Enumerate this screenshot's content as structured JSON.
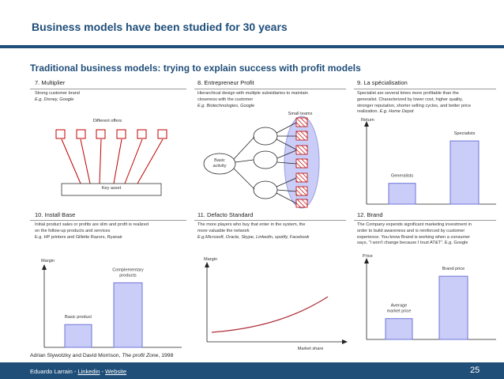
{
  "slide": {
    "title": "Business models have been studied for 30 years",
    "subtitle": "Traditional business models: trying to explain success with profit models",
    "source_prefix": "Adrian Slywotzky and David Morrison, ",
    "source_book": "The profit Zone",
    "source_suffix": ", 1998",
    "page_number": "25"
  },
  "footer": {
    "author": "Eduardo Larrain",
    "sep1": " - ",
    "link1": "Linkedin",
    "sep2": " - ",
    "link2": "Website"
  },
  "panels": {
    "multiplier": {
      "title": "7. Multiplier",
      "desc1": "Strong customer brand",
      "desc2": "E.g. Disney, Google",
      "offers_label": "Different offers",
      "key_asset_label": "Key asset"
    },
    "entrepreneur": {
      "title": "8. Entrepreneur Profit",
      "desc1": "Hierarchical design with multiple subsidiaries to maintain",
      "desc2": "closeness with the customer",
      "desc3": "E.g. Biotechnologies, Google",
      "small_teams_label": "Small teams",
      "basic_activity_1": "Basic",
      "basic_activity_2": "activity"
    },
    "specialisation": {
      "title": "9. La spécialisation",
      "desc1": "Specialist are several times more profitable than the",
      "desc2": "generalist. Characterized by lower cost, higher quality,",
      "desc3": "stronger reputation, shorter selling cycles, and better price",
      "desc4": "realization. ",
      "desc4_example": "E.g. Home Depot",
      "y_axis_label": "Return",
      "bars": [
        {
          "label": "Generalists",
          "value": 0.28
        },
        {
          "label": "Specialists",
          "value": 0.85
        }
      ]
    },
    "install_base": {
      "title": "10. Install Base",
      "desc1": "Initial product sales or profits are slim and profit is realized",
      "desc2": "on the follow-up products and services",
      "desc3": "E.g. HP printers and Gillette Razors, Ryanair",
      "y_axis_label": "Margin",
      "bars": [
        {
          "label": "Basic product",
          "value": 0.3
        },
        {
          "label": "Complementary products",
          "label_1": "Complementary",
          "label_2": "products",
          "value": 0.85
        }
      ]
    },
    "defacto": {
      "title": "11. Defacto Standard",
      "desc1": "The more players who buy that enter in the system, the",
      "desc2": "more valuable the network",
      "desc3": "E.g.Microsoft, Oracle, Skype, Linkedin, spotify, Facebook",
      "y_axis_label": "Margin",
      "x_axis_label": "Market share"
    },
    "brand": {
      "title": "12. Brand",
      "desc1": "The Company expends significant marketing investment in",
      "desc2": "order to build awareness and is reinforced by customer",
      "desc3": "experience. You know Brand is working when a consumer",
      "desc4": "says, “I won’t change because I trust AT&T”. E.g. Google",
      "y_axis_label": "Price",
      "bars": [
        {
          "label": "Average market price",
          "label_1": "Average",
          "label_2": "market price",
          "value": 0.28
        },
        {
          "label": "Brand price",
          "value": 0.85
        }
      ]
    }
  },
  "colors": {
    "brand_blue": "#1f4e79",
    "bar_fill": "#c9cdf7",
    "bar_stroke": "#6f75d8",
    "curve": "#b0303a"
  }
}
